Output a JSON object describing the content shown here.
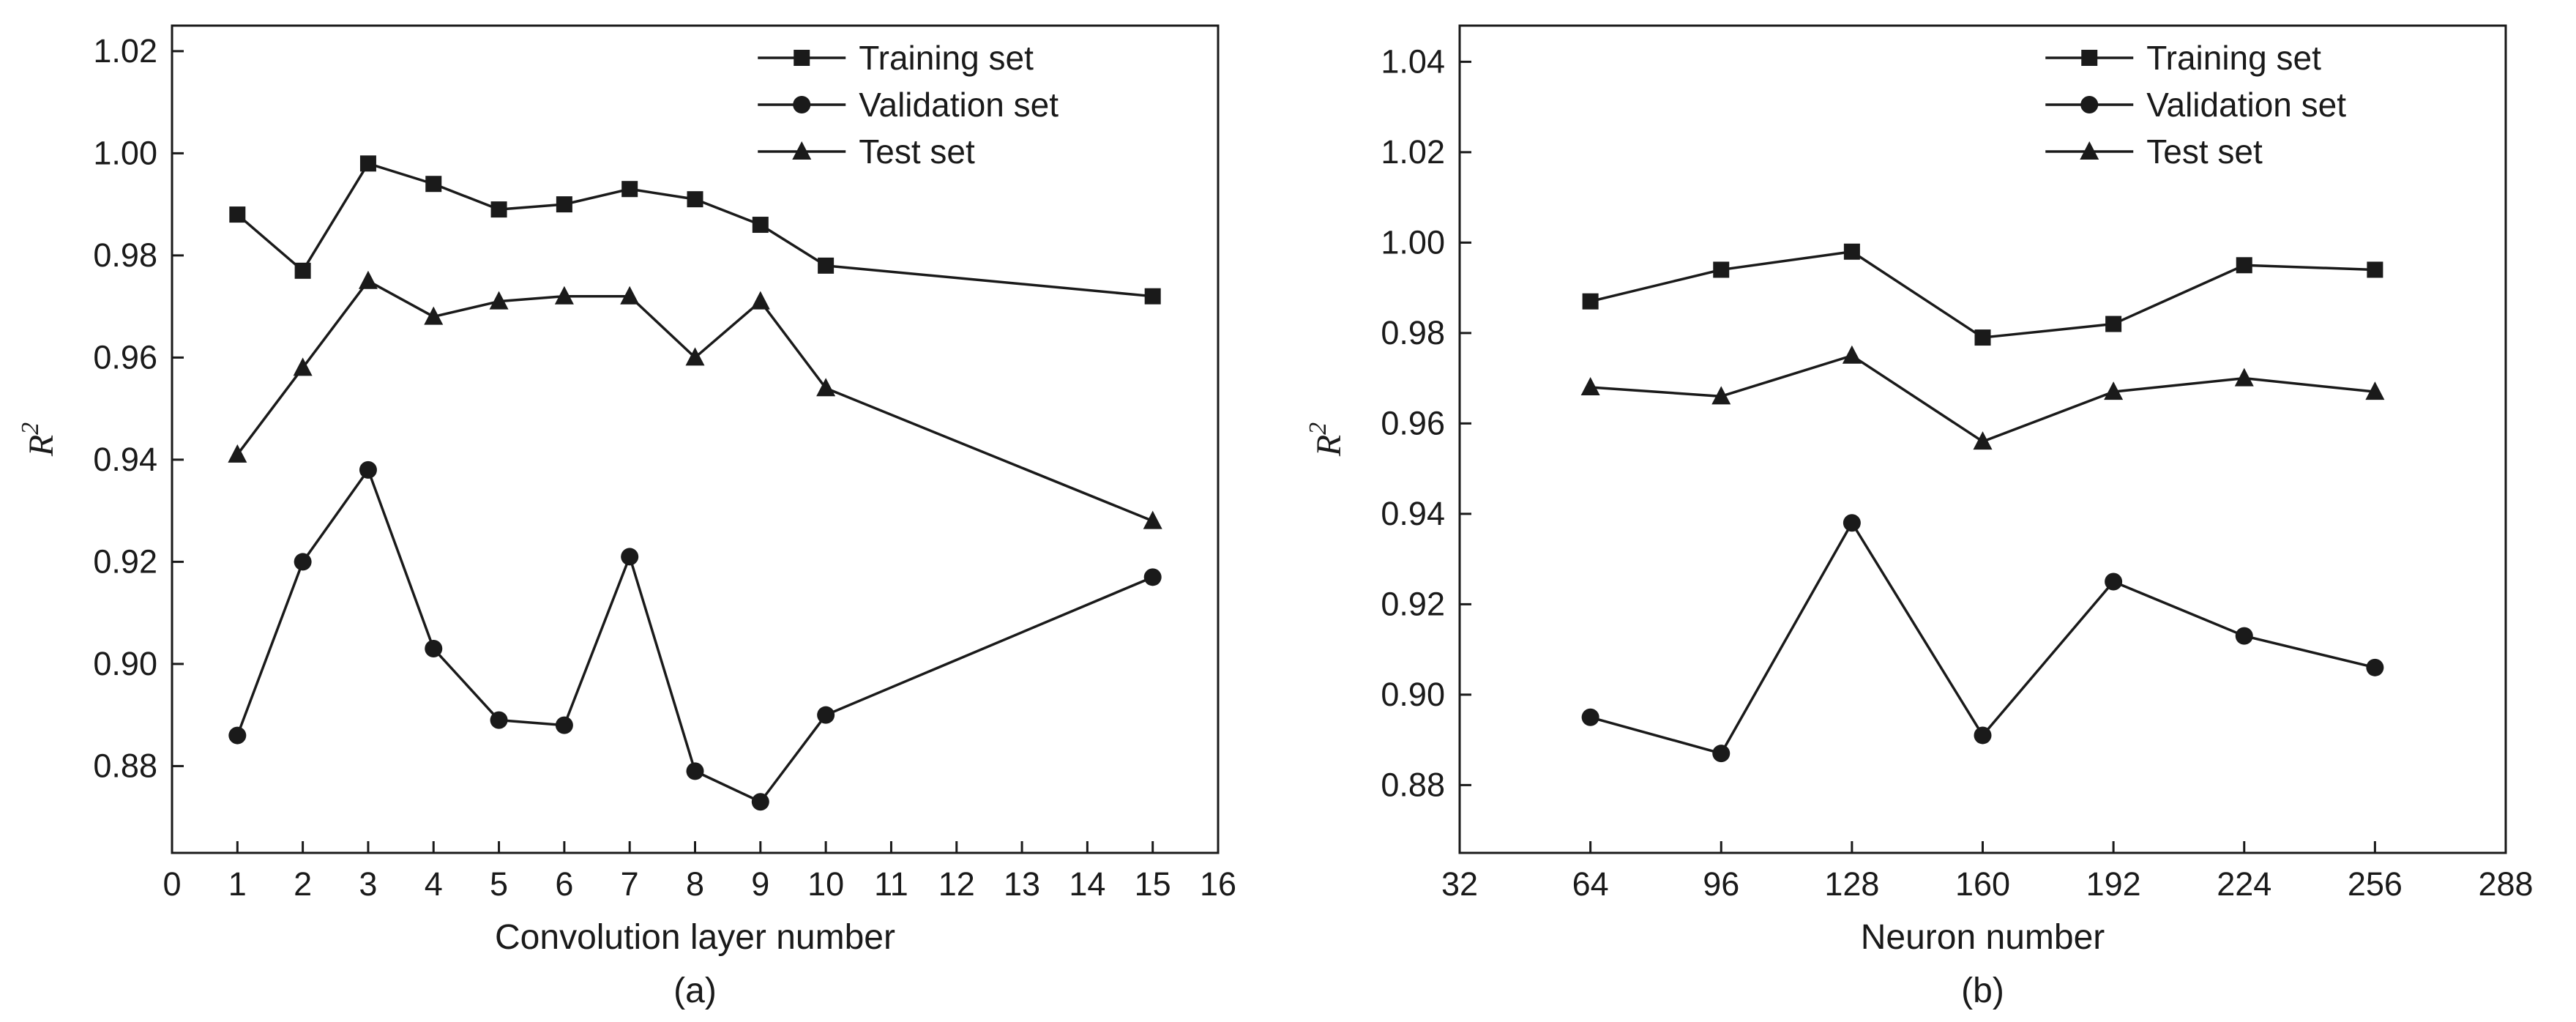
{
  "figure": {
    "background": "#ffffff",
    "line_color": "#1a1a1a",
    "legend_entries": [
      "Training set",
      "Validation set",
      "Test set"
    ]
  },
  "chart_data": [
    {
      "type": "line",
      "caption": "(a)",
      "xlabel": "Convolution layer number",
      "ylabel": "R",
      "ylabel_sup": "2",
      "xlim": [
        0,
        16
      ],
      "xticks": [
        0,
        1,
        2,
        3,
        4,
        5,
        6,
        7,
        8,
        9,
        10,
        11,
        12,
        13,
        14,
        15,
        16
      ],
      "ylim": [
        0.863,
        1.025
      ],
      "yticks": [
        0.88,
        0.9,
        0.92,
        0.94,
        0.96,
        0.98,
        1.0,
        1.02
      ],
      "grid": false,
      "legend_position": "top-right",
      "x": [
        1,
        2,
        3,
        4,
        5,
        6,
        7,
        8,
        9,
        10,
        15
      ],
      "series": [
        {
          "name": "Training set",
          "marker": "square",
          "values": [
            0.988,
            0.977,
            0.998,
            0.994,
            0.989,
            0.99,
            0.993,
            0.991,
            0.986,
            0.978,
            0.972
          ]
        },
        {
          "name": "Validation set",
          "marker": "circle",
          "values": [
            0.886,
            0.92,
            0.938,
            0.903,
            0.889,
            0.888,
            0.921,
            0.879,
            0.873,
            0.89,
            0.917
          ]
        },
        {
          "name": "Test set",
          "marker": "triangle",
          "values": [
            0.941,
            0.958,
            0.975,
            0.968,
            0.971,
            0.972,
            0.972,
            0.96,
            0.971,
            0.954,
            0.928
          ]
        }
      ]
    },
    {
      "type": "line",
      "caption": "(b)",
      "xlabel": "Neuron number",
      "ylabel": "R",
      "ylabel_sup": "2",
      "xlim": [
        32,
        288
      ],
      "xticks": [
        32,
        64,
        96,
        128,
        160,
        192,
        224,
        256,
        288
      ],
      "ylim": [
        0.865,
        1.048
      ],
      "yticks": [
        0.88,
        0.9,
        0.92,
        0.94,
        0.96,
        0.98,
        1.0,
        1.02,
        1.04
      ],
      "grid": false,
      "legend_position": "top-right",
      "x": [
        64,
        96,
        128,
        160,
        192,
        224,
        256
      ],
      "series": [
        {
          "name": "Training set",
          "marker": "square",
          "values": [
            0.987,
            0.994,
            0.998,
            0.979,
            0.982,
            0.995,
            0.994
          ]
        },
        {
          "name": "Validation set",
          "marker": "circle",
          "values": [
            0.895,
            0.887,
            0.938,
            0.891,
            0.925,
            0.913,
            0.906
          ]
        },
        {
          "name": "Test set",
          "marker": "triangle",
          "values": [
            0.968,
            0.966,
            0.975,
            0.956,
            0.967,
            0.97,
            0.967
          ]
        }
      ]
    }
  ]
}
